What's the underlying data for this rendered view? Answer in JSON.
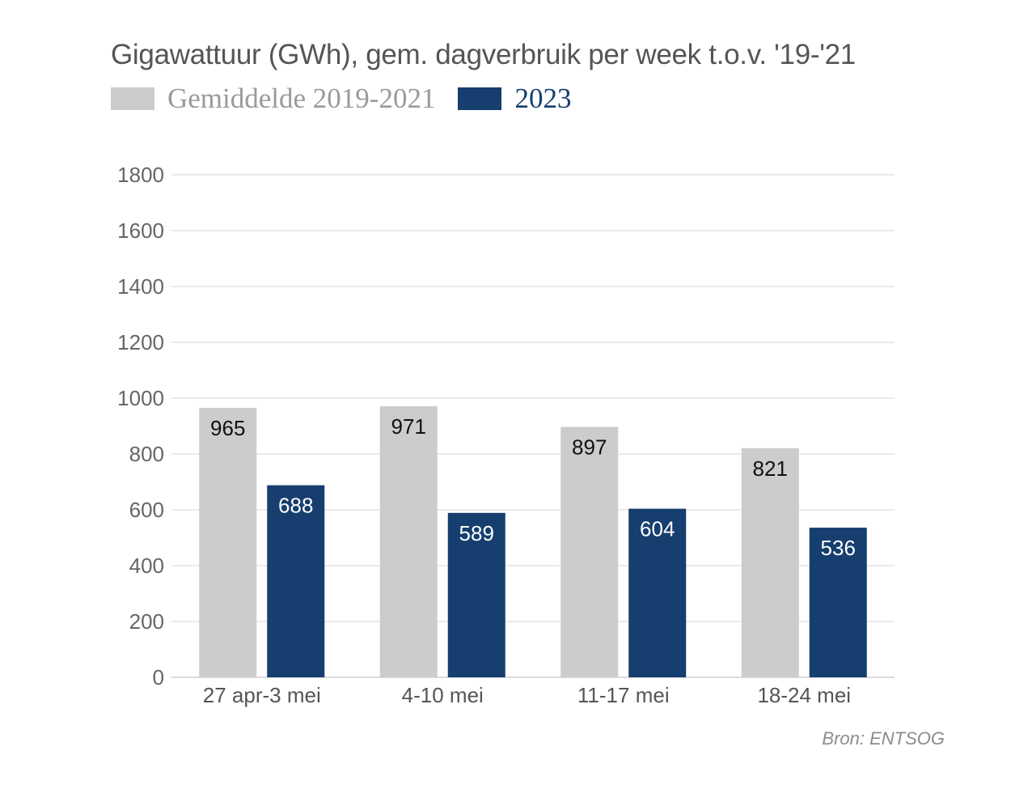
{
  "chart_data": {
    "type": "bar",
    "title": "Gigawattuur (GWh), gem. dagverbruik per week t.o.v. '19-'21",
    "categories": [
      "27 apr-3 mei",
      "4-10 mei",
      "11-17 mei",
      "18-24 mei"
    ],
    "series": [
      {
        "name": "Gemiddelde 2019-2021",
        "color": "#cccccc",
        "label_color": "#111111",
        "values": [
          965,
          971,
          897,
          821
        ]
      },
      {
        "name": "2023",
        "color": "#163e6e",
        "label_color": "#ffffff",
        "values": [
          688,
          589,
          604,
          536
        ]
      }
    ],
    "ylim": [
      0,
      1800
    ],
    "yticks": [
      0,
      200,
      400,
      600,
      800,
      1000,
      1200,
      1400,
      1600,
      1800
    ],
    "grid": true,
    "legend_position": "top-left",
    "source": "Bron: ENTSOG"
  }
}
